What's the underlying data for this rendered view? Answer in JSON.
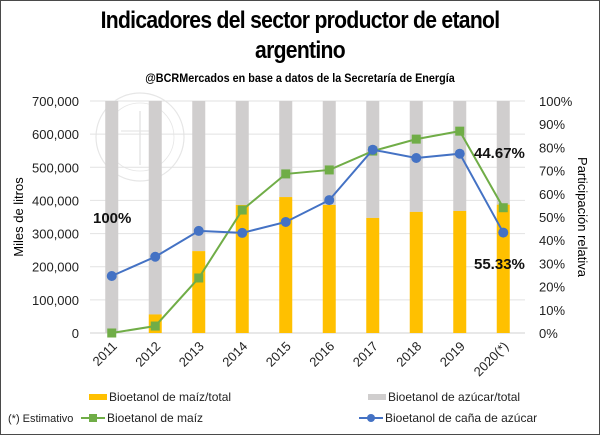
{
  "title_line1": "Indicadores del sector productor de etanol",
  "title_line2": "argentino",
  "subtitle": "@BCRMercados  en base a datos de la Secretaría  de Energía",
  "note": "(*) Estimativo",
  "colors": {
    "maiz_share": "#FFC000",
    "azucar_share": "#D0CECE",
    "maiz_line": "#70AD47",
    "cana_line": "#4472C4"
  },
  "chart_data": {
    "type": "bar",
    "title": "Indicadores del sector productor de etanol argentino",
    "categories": [
      "2011",
      "2012",
      "2013",
      "2014",
      "2015",
      "2016",
      "2017",
      "2018",
      "2019",
      "2020(*)"
    ],
    "ylabel": "Miles de litros",
    "y2label": "Participación relativa",
    "ylim": [
      0,
      700000
    ],
    "y2lim": [
      0,
      100
    ],
    "yticks": [
      "0",
      "100,000",
      "200,000",
      "300,000",
      "400,000",
      "500,000",
      "600,000",
      "700,000"
    ],
    "y2ticks": [
      "0%",
      "10%",
      "20%",
      "30%",
      "40%",
      "50%",
      "60%",
      "70%",
      "80%",
      "90%",
      "100%"
    ],
    "grid": true,
    "legend_position": "bottom",
    "bar_series": [
      {
        "name": "Bioetanol de maíz/total",
        "axis": "right",
        "values": [
          0,
          8,
          35.3,
          55.2,
          58.6,
          55.2,
          49.6,
          52.2,
          52.6,
          55.33
        ]
      },
      {
        "name": "Bioetanol de azúcar/total",
        "axis": "right",
        "values": [
          100,
          92,
          64.7,
          44.8,
          41.4,
          44.8,
          50.4,
          47.8,
          47.4,
          44.67
        ]
      }
    ],
    "line_series": [
      {
        "name": "Bioetanol de maíz",
        "axis": "left",
        "marker": "square",
        "values": [
          0,
          21000,
          166000,
          371000,
          480000,
          492000,
          549000,
          585000,
          609000,
          378000
        ]
      },
      {
        "name": "Bioetanol de caña de azúcar",
        "axis": "left",
        "marker": "circle",
        "values": [
          172000,
          230000,
          308000,
          302000,
          335000,
          401000,
          553000,
          528000,
          541000,
          303000
        ]
      }
    ],
    "annotations": [
      {
        "text": "100%",
        "category": "2011",
        "series": "Bioetanol de azúcar/total"
      },
      {
        "text": "44.67%",
        "category": "2020(*)",
        "series": "Bioetanol de azúcar/total"
      },
      {
        "text": "55.33%",
        "category": "2020(*)",
        "series": "Bioetanol de maíz/total"
      }
    ]
  }
}
